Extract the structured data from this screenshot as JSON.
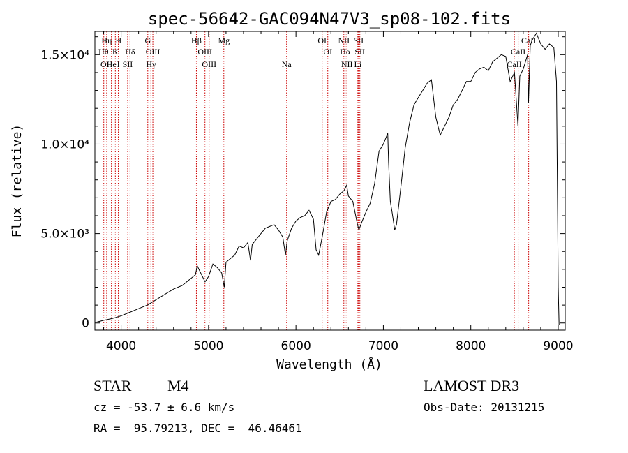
{
  "chart_data": {
    "type": "line",
    "title": "spec-56642-GAC094N47V3_sp08-102.fits",
    "xlabel": "Wavelength (Å)",
    "ylabel": "Flux (relative)",
    "xlim": [
      3700,
      9080
    ],
    "ylim": [
      -400,
      16300
    ],
    "x_ticks": [
      4000,
      5000,
      6000,
      7000,
      8000,
      9000
    ],
    "y_ticks": [
      {
        "value": 0,
        "label": "0"
      },
      {
        "value": 5000,
        "label": "5.0×10³"
      },
      {
        "value": 10000,
        "label": "1.0×10⁴"
      },
      {
        "value": 15000,
        "label": "1.5×10⁴"
      }
    ],
    "series": [
      {
        "name": "flux",
        "x": [
          3720,
          3800,
          3900,
          4000,
          4100,
          4200,
          4300,
          4400,
          4500,
          4600,
          4700,
          4800,
          4850,
          4870,
          4900,
          4960,
          5000,
          5050,
          5100,
          5150,
          5180,
          5200,
          5250,
          5300,
          5350,
          5400,
          5450,
          5480,
          5500,
          5550,
          5600,
          5650,
          5700,
          5750,
          5800,
          5850,
          5880,
          5900,
          5950,
          6000,
          6050,
          6100,
          6150,
          6200,
          6230,
          6260,
          6300,
          6350,
          6400,
          6450,
          6500,
          6550,
          6580,
          6600,
          6650,
          6700,
          6720,
          6750,
          6800,
          6850,
          6900,
          6950,
          7000,
          7050,
          7060,
          7080,
          7100,
          7130,
          7150,
          7200,
          7250,
          7300,
          7350,
          7400,
          7450,
          7500,
          7550,
          7600,
          7650,
          7700,
          7750,
          7800,
          7850,
          7900,
          7950,
          8000,
          8050,
          8100,
          8150,
          8200,
          8250,
          8300,
          8350,
          8400,
          8450,
          8500,
          8540,
          8560,
          8600,
          8650,
          8660,
          8680,
          8700,
          8750,
          8800,
          8850,
          8900,
          8950,
          8980,
          9000,
          9010
        ],
        "values": [
          50,
          150,
          250,
          400,
          600,
          800,
          1000,
          1300,
          1600,
          1900,
          2100,
          2500,
          2700,
          3200,
          2900,
          2300,
          2600,
          3300,
          3100,
          2800,
          2000,
          3400,
          3600,
          3800,
          4300,
          4200,
          4500,
          3500,
          4400,
          4700,
          5000,
          5300,
          5400,
          5500,
          5200,
          4800,
          3800,
          4600,
          5300,
          5700,
          5900,
          6000,
          6300,
          5800,
          4100,
          3800,
          4800,
          6200,
          6800,
          6900,
          7200,
          7400,
          7700,
          7100,
          6800,
          5600,
          5200,
          5600,
          6200,
          6700,
          7800,
          9600,
          10000,
          10600,
          9000,
          6800,
          6200,
          5200,
          5500,
          7600,
          9800,
          11200,
          12200,
          12600,
          13000,
          13400,
          13600,
          11500,
          10500,
          11000,
          11500,
          12200,
          12500,
          13000,
          13500,
          13500,
          14000,
          14200,
          14300,
          14100,
          14600,
          14800,
          15000,
          14900,
          13500,
          14000,
          11000,
          13800,
          14200,
          15000,
          12300,
          15500,
          15800,
          16200,
          15600,
          15300,
          15600,
          15400,
          13500,
          2000,
          -100
        ]
      }
    ],
    "line_markers": [
      {
        "label": "OI",
        "wavelength": 3814,
        "row": 3
      },
      {
        "label": "Hθ",
        "wavelength": 3798,
        "row": 2
      },
      {
        "label": "Hη",
        "wavelength": 3835,
        "row": 1
      },
      {
        "label": "He",
        "wavelength": 3889,
        "row": 3
      },
      {
        "label": "H",
        "wavelength": 3970,
        "row": 1
      },
      {
        "label": "K",
        "wavelength": 3934,
        "row": 2
      },
      {
        "label": "I",
        "wavelength": 3968,
        "row": 3
      },
      {
        "label": "Hδ",
        "wavelength": 4102,
        "row": 2
      },
      {
        "label": "SII",
        "wavelength": 4075,
        "row": 3
      },
      {
        "label": "G",
        "wavelength": 4305,
        "row": 1
      },
      {
        "label": "OIII",
        "wavelength": 4363,
        "row": 2
      },
      {
        "label": "Hγ",
        "wavelength": 4341,
        "row": 3
      },
      {
        "label": "Hβ",
        "wavelength": 4861,
        "row": 1
      },
      {
        "label": "OIII",
        "wavelength": 4959,
        "row": 2
      },
      {
        "label": "OIII",
        "wavelength": 5007,
        "row": 3
      },
      {
        "label": "Mg",
        "wavelength": 5175,
        "row": 1
      },
      {
        "label": "Na",
        "wavelength": 5893,
        "row": 3
      },
      {
        "label": "OI",
        "wavelength": 6300,
        "row": 1
      },
      {
        "label": "OI",
        "wavelength": 6364,
        "row": 2
      },
      {
        "label": "NII",
        "wavelength": 6548,
        "row": 1
      },
      {
        "label": "Hα",
        "wavelength": 6563,
        "row": 2
      },
      {
        "label": "NII",
        "wavelength": 6583,
        "row": 3
      },
      {
        "label": "SII",
        "wavelength": 6716,
        "row": 1
      },
      {
        "label": "SII",
        "wavelength": 6731,
        "row": 2
      },
      {
        "label": "Li",
        "wavelength": 6708,
        "row": 3
      },
      {
        "label": "CaII",
        "wavelength": 8662,
        "row": 1
      },
      {
        "label": "CaII",
        "wavelength": 8542,
        "row": 2
      },
      {
        "label": "CaII",
        "wavelength": 8498,
        "row": 3
      }
    ]
  },
  "info": {
    "object_class": "STAR",
    "subclass": "M4",
    "cz": "cz = -53.7 ± 6.6 km/s",
    "coords": "RA =  95.79213, DEC =  46.46461",
    "survey": "LAMOST DR3",
    "obs_date": "Obs-Date: 20131215"
  },
  "colors": {
    "spectrum": "#000000",
    "marker_line": "#cc0000",
    "text": "#000000"
  }
}
